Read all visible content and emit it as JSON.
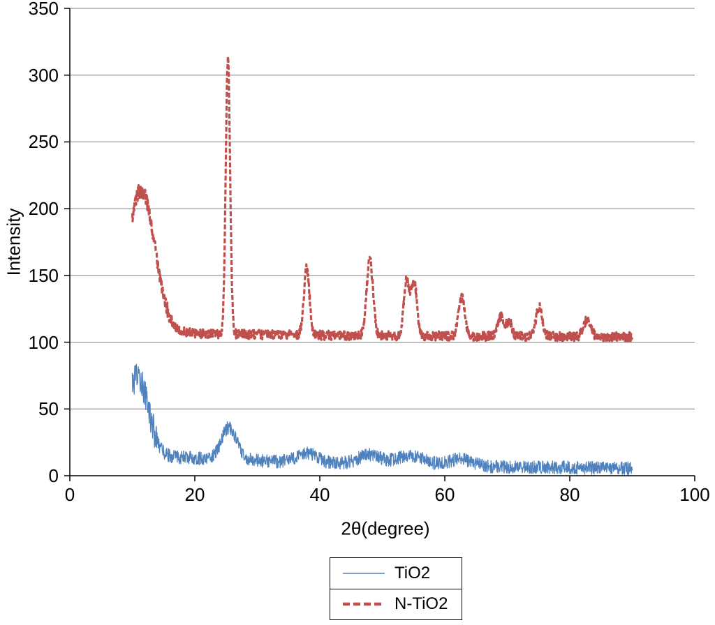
{
  "chart_data": {
    "type": "line",
    "title": "",
    "xlabel": "2θ(degree)",
    "ylabel": "Intensity",
    "xlim": [
      0,
      100
    ],
    "ylim": [
      0,
      350
    ],
    "x_ticks": [
      0,
      20,
      40,
      60,
      80,
      100
    ],
    "y_ticks": [
      0,
      50,
      100,
      150,
      200,
      250,
      300,
      350
    ],
    "grid": "horizontal-gridlines",
    "legend_position": "bottom-center",
    "series": [
      {
        "name": "TiO2",
        "color": "#4f81bd",
        "line_style": "solid-thin",
        "x_start": 10,
        "x_end": 90,
        "baseline_offset": 4,
        "slow_decay_amp": 12,
        "slow_decay_scale": 40,
        "low_angle_hump": {
          "center": 10.9,
          "amp": 58,
          "sigma": 1.7
        },
        "peaks": [
          {
            "center": 25.5,
            "amp": 24,
            "sigma": 1.2
          },
          {
            "center": 38.0,
            "amp": 7,
            "sigma": 1.6
          },
          {
            "center": 48.0,
            "amp": 7,
            "sigma": 1.8
          },
          {
            "center": 54.5,
            "amp": 7,
            "sigma": 2.2
          },
          {
            "center": 62.5,
            "amp": 5,
            "sigma": 2.0
          }
        ],
        "noise_amp": 5,
        "noise_boost": {
          "below_x": 14,
          "factor": 2.2
        },
        "seed": 12345
      },
      {
        "name": "N-TiO2",
        "color": "#c0504d",
        "line_style": "dashed-thick",
        "x_start": 10,
        "x_end": 90,
        "baseline_offset": 104,
        "slow_decay_amp": 4,
        "slow_decay_scale": 25,
        "low_angle_hump": {
          "center": 11.4,
          "amp": 106,
          "sigma": 2.2
        },
        "peaks": [
          {
            "center": 25.3,
            "amp": 206,
            "sigma": 0.35
          },
          {
            "center": 37.9,
            "amp": 50,
            "sigma": 0.45
          },
          {
            "center": 48.0,
            "amp": 58,
            "sigma": 0.5
          },
          {
            "center": 53.9,
            "amp": 42,
            "sigma": 0.45
          },
          {
            "center": 55.1,
            "amp": 40,
            "sigma": 0.45
          },
          {
            "center": 62.7,
            "amp": 30,
            "sigma": 0.5
          },
          {
            "center": 68.9,
            "amp": 15,
            "sigma": 0.5
          },
          {
            "center": 70.3,
            "amp": 11,
            "sigma": 0.45
          },
          {
            "center": 75.1,
            "amp": 22,
            "sigma": 0.5
          },
          {
            "center": 82.8,
            "amp": 13,
            "sigma": 0.55
          }
        ],
        "noise_amp": 3.5,
        "noise_boost": {
          "below_x": 16,
          "factor": 1.6
        },
        "seed": 777
      }
    ]
  },
  "colors": {
    "gridline": "#7f7f7f",
    "axis": "#000000",
    "background": "#ffffff"
  }
}
